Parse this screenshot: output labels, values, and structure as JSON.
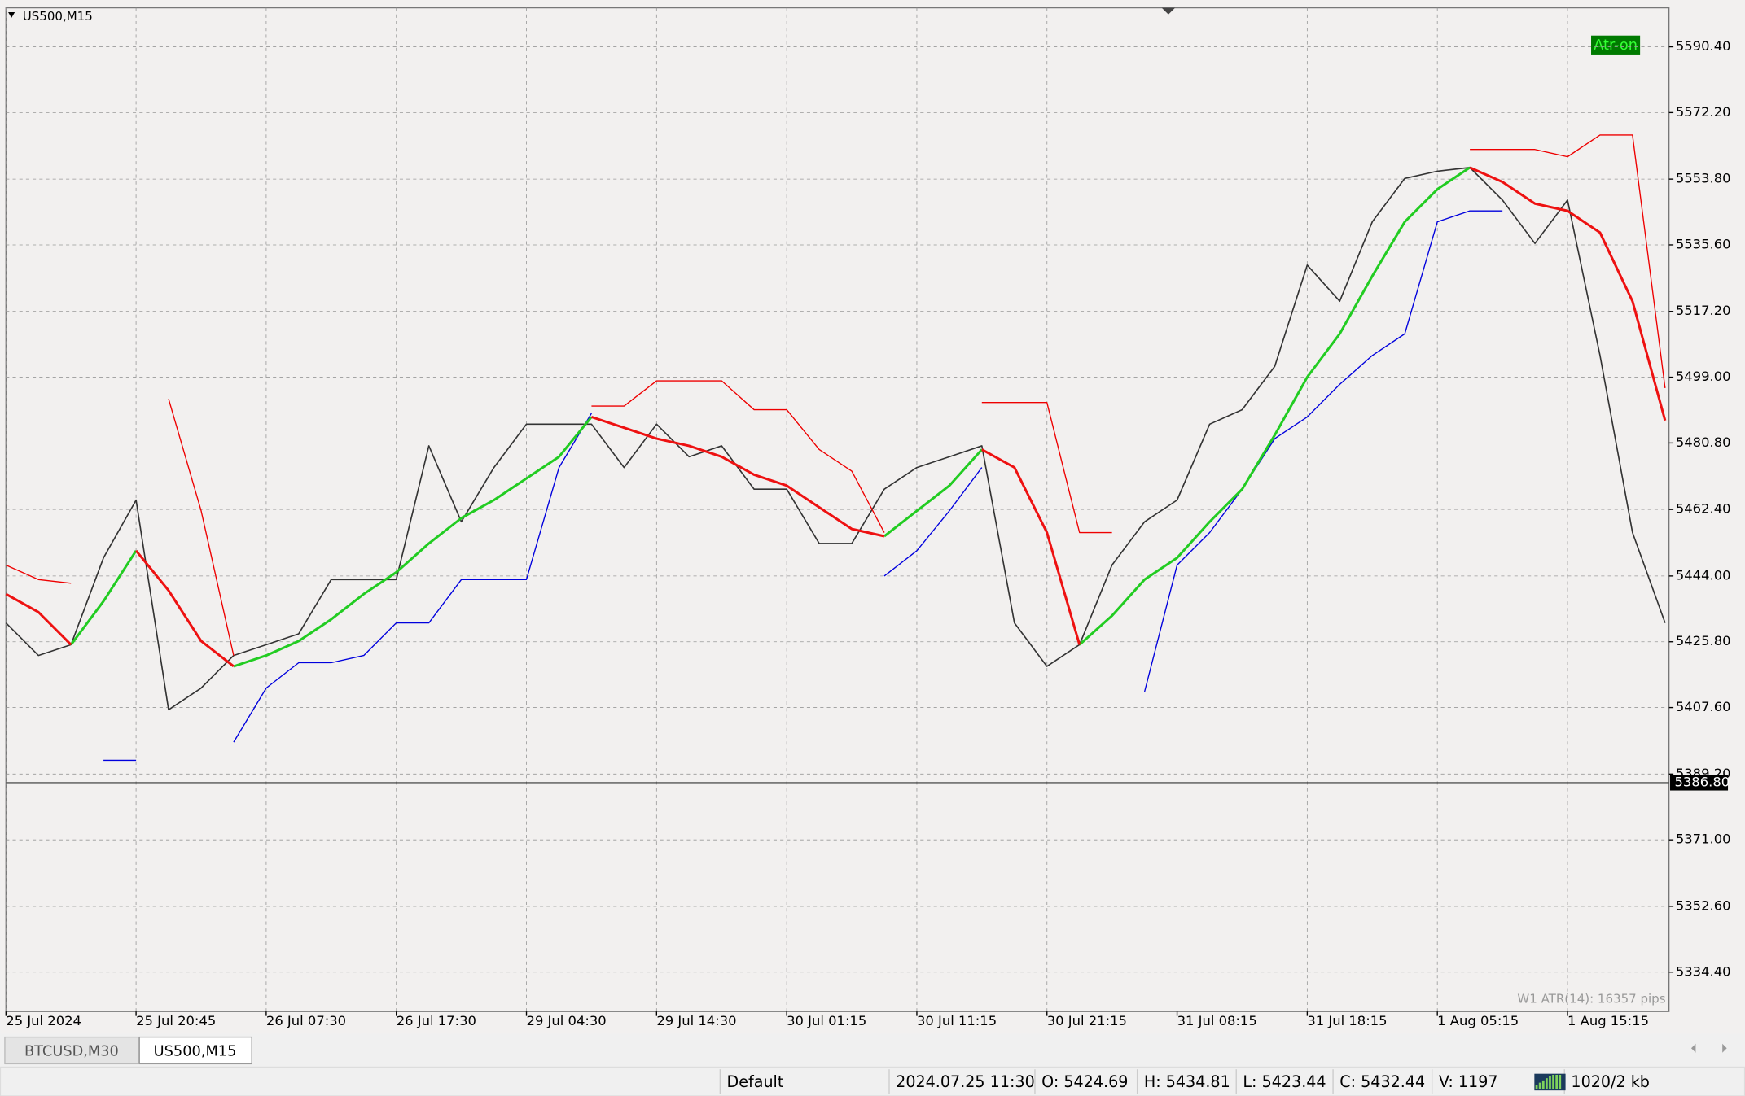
{
  "chart_data": {
    "type": "line",
    "symbol": "US500,M15",
    "annotations": [
      "Atr-on",
      "W1 ATR(14): 16357 pips"
    ],
    "current_price": {
      "value": 5386.8,
      "label": "5386.80"
    },
    "grid": true,
    "xlim": [
      0,
      12.78
    ],
    "xticks": [
      {
        "value": 0,
        "label": "25 Jul 2024"
      },
      {
        "value": 1,
        "label": "25 Jul 20:45"
      },
      {
        "value": 2,
        "label": "26 Jul 07:30"
      },
      {
        "value": 3,
        "label": "26 Jul 17:30"
      },
      {
        "value": 4,
        "label": "29 Jul 04:30"
      },
      {
        "value": 5,
        "label": "29 Jul 14:30"
      },
      {
        "value": 6,
        "label": "30 Jul 01:15"
      },
      {
        "value": 7,
        "label": "30 Jul 11:15"
      },
      {
        "value": 8,
        "label": "30 Jul 21:15"
      },
      {
        "value": 9,
        "label": "31 Jul 08:15"
      },
      {
        "value": 10,
        "label": "31 Jul 18:15"
      },
      {
        "value": 11,
        "label": "1 Aug 05:15"
      },
      {
        "value": 12,
        "label": "1 Aug 15:15"
      }
    ],
    "ylim": [
      5323.5,
      5601.2
    ],
    "yticks": [
      {
        "value": 5590.4,
        "label": "5590.40"
      },
      {
        "value": 5572.2,
        "label": "5572.20"
      },
      {
        "value": 5553.8,
        "label": "5553.80"
      },
      {
        "value": 5535.6,
        "label": "5535.60"
      },
      {
        "value": 5517.2,
        "label": "5517.20"
      },
      {
        "value": 5499,
        "label": "5499.00"
      },
      {
        "value": 5480.8,
        "label": "5480.80"
      },
      {
        "value": 5462.4,
        "label": "5462.40"
      },
      {
        "value": 5444,
        "label": "5444.00"
      },
      {
        "value": 5425.8,
        "label": "5425.80"
      },
      {
        "value": 5407.6,
        "label": "5407.60"
      },
      {
        "value": 5389.2,
        "label": "5389.20"
      },
      {
        "value": 5371,
        "label": "5371.00"
      },
      {
        "value": 5352.6,
        "label": "5352.60"
      },
      {
        "value": 5334.4,
        "label": "5334.40"
      }
    ],
    "x": [
      0,
      0.25,
      0.5,
      0.75,
      1,
      1.25,
      1.5,
      1.75,
      2,
      2.25,
      2.5,
      2.75,
      3,
      3.25,
      3.5,
      3.75,
      4,
      4.25,
      4.5,
      4.75,
      5,
      5.25,
      5.5,
      5.75,
      6,
      6.25,
      6.5,
      6.75,
      7,
      7.25,
      7.5,
      7.75,
      8,
      8.25,
      8.5,
      8.75,
      9,
      9.25,
      9.5,
      9.75,
      10,
      10.25,
      10.5,
      10.75,
      11,
      11.25,
      11.5,
      11.75,
      12,
      12.25,
      12.5,
      12.75
    ],
    "series": [
      {
        "color": "#333333",
        "width": 1.2,
        "values": [
          5431,
          5422,
          5425,
          5449,
          5465,
          5407,
          5413,
          5422,
          5425,
          5428,
          5443,
          5443,
          5443,
          5480,
          5459,
          5474,
          5486,
          5486,
          5486,
          5474,
          5486,
          5477,
          5480,
          5468,
          5468,
          5453,
          5453,
          5468,
          5474,
          5477,
          5480,
          5431,
          5419,
          5425,
          5447,
          5459,
          5465,
          5486,
          5490,
          5502,
          5530,
          5520,
          5542,
          5554,
          5556,
          5557,
          5548,
          5536,
          5548,
          5505,
          5456,
          5431
        ]
      },
      {
        "color": "#ee0000",
        "width": 1,
        "values": [
          5447,
          5443,
          5442,
          null,
          null,
          5493,
          5462,
          5422,
          null,
          null,
          null,
          null,
          null,
          null,
          null,
          null,
          null,
          null,
          5491,
          5491,
          5498,
          5498,
          5498,
          5490,
          5490,
          5479,
          5473,
          5456,
          null,
          null,
          5492,
          5492,
          5492,
          5456,
          5456,
          null,
          null,
          null,
          null,
          null,
          null,
          null,
          null,
          null,
          null,
          5562,
          5562,
          5562,
          5560,
          5566,
          5566,
          5496
        ]
      },
      {
        "color": "#0000dd",
        "width": 1,
        "values": [
          null,
          null,
          null,
          5393,
          5393,
          null,
          null,
          5398,
          5413,
          5420,
          5420,
          5422,
          5431,
          5431,
          5443,
          5443,
          5443,
          5474,
          5489,
          null,
          null,
          null,
          null,
          null,
          null,
          null,
          null,
          5444,
          5451,
          5462,
          5474,
          null,
          null,
          null,
          null,
          5412,
          5447,
          5456,
          5468,
          5482,
          5488,
          5497,
          5505,
          5511,
          5542,
          5545,
          5545,
          null,
          null,
          null,
          null,
          null
        ]
      },
      {
        "color": "#22cc22",
        "width": 2.2,
        "values": [
          null,
          null,
          5425,
          5437,
          5451,
          null,
          null,
          5419,
          5422,
          5426,
          5432,
          5439,
          5445,
          5453,
          5460,
          5465,
          5471,
          5477,
          5488,
          null,
          null,
          null,
          null,
          null,
          null,
          null,
          null,
          5455,
          5462,
          5469,
          5479,
          null,
          null,
          5425,
          5433,
          5443,
          5449,
          5459,
          5468,
          5483,
          5499,
          5511,
          5527,
          5542,
          5551,
          5557,
          null,
          null,
          null,
          null,
          null,
          null
        ]
      },
      {
        "color": "#ee1111",
        "width": 2.2,
        "values": [
          5439,
          5434,
          5425,
          null,
          5451,
          5440,
          5426,
          5419,
          null,
          null,
          null,
          null,
          null,
          null,
          null,
          null,
          null,
          null,
          5488,
          5485,
          5482,
          5480,
          5477,
          5472,
          5469,
          5463,
          5457,
          5455,
          null,
          null,
          5479,
          5474,
          5456,
          5425,
          null,
          null,
          null,
          null,
          null,
          null,
          null,
          null,
          null,
          null,
          null,
          5557,
          5553,
          5547,
          5545,
          5539,
          5520,
          5487
        ]
      }
    ]
  },
  "tabs": [
    "BTCUSD,M30",
    "US500,M15"
  ],
  "status_bar": [
    "Default",
    "2024.07.25 11:30",
    "O: 5424.69",
    "H: 5434.81",
    "L: 5423.44",
    "C: 5432.44",
    "V: 1197",
    "1020/2 kb"
  ]
}
